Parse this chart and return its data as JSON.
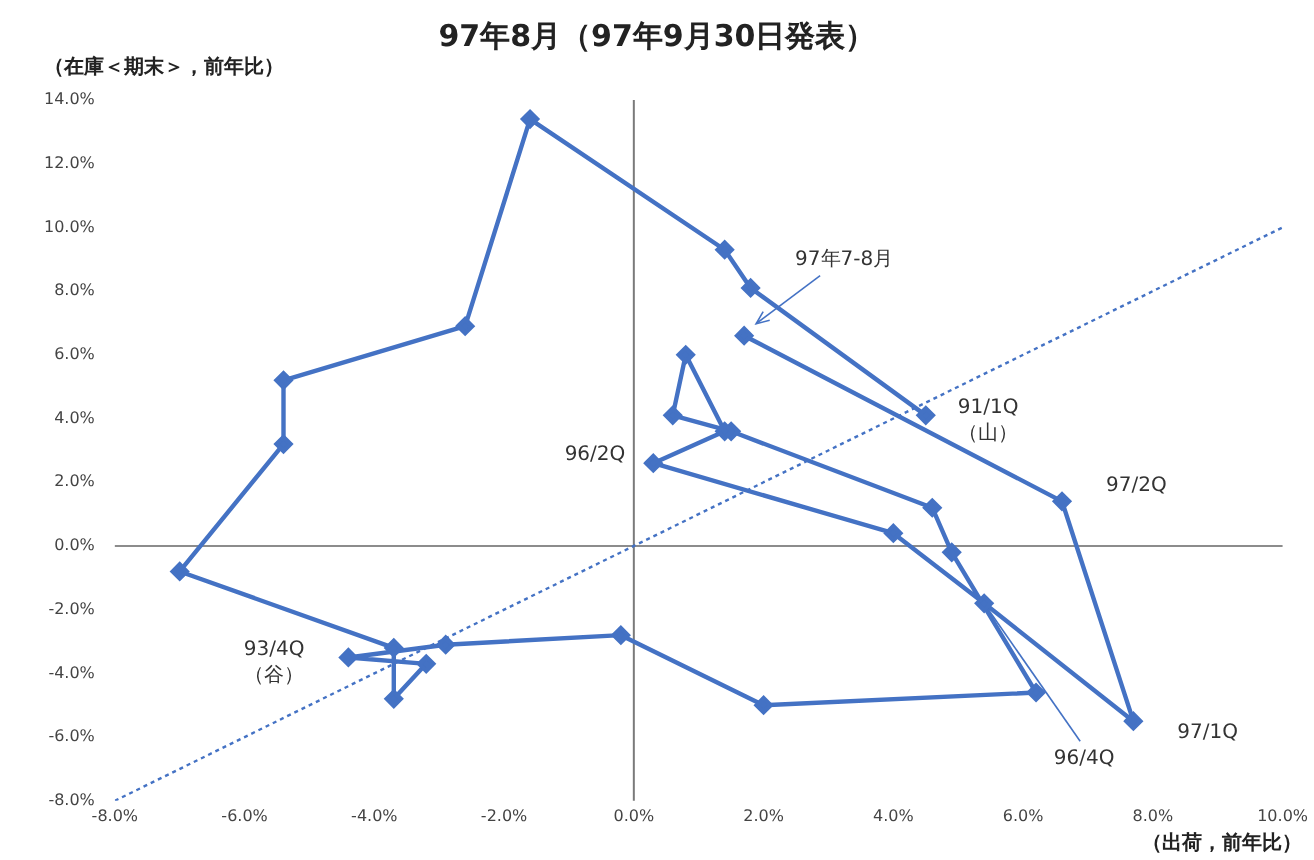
{
  "chart_data": {
    "type": "line",
    "title": "97年8月（97年9月30日発表）",
    "xlabel": "（出荷，前年比）",
    "ylabel": "（在庫＜期末＞，前年比）",
    "xlim": [
      -8,
      10
    ],
    "ylim": [
      -8,
      14
    ],
    "xticks": [
      {
        "value": -8,
        "label": "-8.0%"
      },
      {
        "value": -6,
        "label": "-6.0%"
      },
      {
        "value": -4,
        "label": "-4.0%"
      },
      {
        "value": -2,
        "label": "-2.0%"
      },
      {
        "value": 0,
        "label": "0.0%"
      },
      {
        "value": 2,
        "label": "2.0%"
      },
      {
        "value": 4,
        "label": "4.0%"
      },
      {
        "value": 6,
        "label": "6.0%"
      },
      {
        "value": 8,
        "label": "8.0%"
      },
      {
        "value": 10,
        "label": "10.0%"
      }
    ],
    "yticks": [
      {
        "value": -8,
        "label": "-8.0%"
      },
      {
        "value": -6,
        "label": "-6.0%"
      },
      {
        "value": -4,
        "label": "-4.0%"
      },
      {
        "value": -2,
        "label": "-2.0%"
      },
      {
        "value": 0,
        "label": "0.0%"
      },
      {
        "value": 2,
        "label": "2.0%"
      },
      {
        "value": 4,
        "label": "4.0%"
      },
      {
        "value": 6,
        "label": "6.0%"
      },
      {
        "value": 8,
        "label": "8.0%"
      },
      {
        "value": 10,
        "label": "10.0%"
      },
      {
        "value": 12,
        "label": "12.0%"
      },
      {
        "value": 14,
        "label": "14.0%"
      }
    ],
    "grid": false,
    "legend": false,
    "series": [
      {
        "color": "#4472c4",
        "marker": "diamond",
        "line_style": "solid",
        "x": [
          4.5,
          1.8,
          1.4,
          -1.6,
          -2.6,
          -5.4,
          -5.4,
          -7.0,
          -3.7,
          -3.7,
          -3.2,
          -4.4,
          -2.9,
          -0.2,
          2.0,
          6.2,
          4.9,
          4.6,
          1.5,
          0.6,
          0.8,
          1.4,
          0.3,
          4.0,
          5.4,
          7.7,
          6.6,
          1.7
        ],
        "values": [
          4.1,
          8.1,
          9.3,
          13.4,
          6.9,
          5.2,
          3.2,
          -0.8,
          -3.2,
          -4.8,
          -3.7,
          -3.5,
          -3.1,
          -2.8,
          -5.0,
          -4.6,
          -0.2,
          1.2,
          3.6,
          4.1,
          6.0,
          3.6,
          2.6,
          0.4,
          -1.8,
          -5.5,
          1.4,
          6.6
        ]
      },
      {
        "type": "line",
        "color": "#4472c4",
        "marker": "none",
        "line_style": "dotted",
        "x": [
          -8,
          10
        ],
        "values": [
          -8,
          10
        ]
      }
    ],
    "ref_lines": [
      {
        "axis": "x",
        "value": 0,
        "color": "#7a7a7a"
      },
      {
        "axis": "y",
        "value": 0,
        "color": "#8c8c8c"
      }
    ],
    "annotations": [
      {
        "text": "91/1Q\n（山）",
        "x": 4.5,
        "y": 4.1
      },
      {
        "text": "97年7-8月",
        "x": 1.7,
        "y": 6.6
      },
      {
        "text": "96/2Q",
        "x": 0.3,
        "y": 2.6
      },
      {
        "text": "97/2Q",
        "x": 6.6,
        "y": 1.4
      },
      {
        "text": "93/4Q\n（谷）",
        "x": -4.4,
        "y": -3.5
      },
      {
        "text": "96/4Q",
        "x": 5.4,
        "y": -1.8
      },
      {
        "text": "97/1Q",
        "x": 7.7,
        "y": -5.5
      }
    ]
  }
}
